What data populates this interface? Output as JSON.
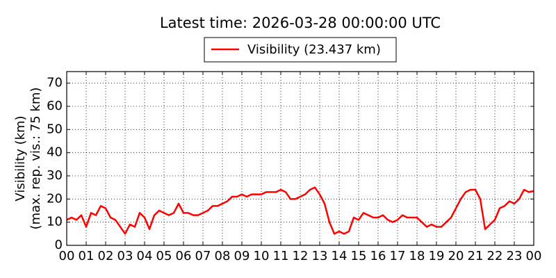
{
  "chart_data": {
    "type": "line",
    "title": "Latest time: 2026-03-28 00:00:00 UTC",
    "y_label": [
      "Visibility (km)",
      "(max. rep. vis.: 75 km)"
    ],
    "x": [
      0,
      0.25,
      0.5,
      0.75,
      1,
      1.25,
      1.5,
      1.75,
      2,
      2.25,
      2.5,
      2.75,
      3,
      3.25,
      3.5,
      3.75,
      4,
      4.25,
      4.5,
      4.75,
      5,
      5.25,
      5.5,
      5.75,
      6,
      6.25,
      6.5,
      6.75,
      7,
      7.25,
      7.5,
      7.75,
      8,
      8.25,
      8.5,
      8.75,
      9,
      9.25,
      9.5,
      9.75,
      10,
      10.25,
      10.5,
      10.75,
      11,
      11.25,
      11.5,
      11.75,
      12,
      12.25,
      12.5,
      12.75,
      13,
      13.25,
      13.5,
      13.75,
      14,
      14.25,
      14.5,
      14.75,
      15,
      15.25,
      15.5,
      15.75,
      16,
      16.25,
      16.5,
      16.75,
      17,
      17.25,
      17.5,
      17.75,
      18,
      18.25,
      18.5,
      18.75,
      19,
      19.25,
      19.5,
      19.75,
      20,
      20.25,
      20.5,
      20.75,
      21,
      21.25,
      21.5,
      21.75,
      22,
      22.25,
      22.5,
      22.75,
      23,
      23.25,
      23.5,
      23.75,
      24
    ],
    "series": [
      {
        "name": "Visibility (23.437 km)",
        "color": "#ff0000",
        "values": [
          11,
          12,
          11,
          13,
          8,
          14,
          13,
          17,
          16,
          12,
          11,
          8,
          5,
          9,
          8,
          14,
          12,
          7,
          13,
          15,
          14,
          13,
          14,
          18,
          14,
          14,
          13,
          13,
          14,
          15,
          17,
          17,
          18,
          19,
          21,
          21,
          22,
          21,
          22,
          22,
          22,
          23,
          23,
          23,
          24,
          23,
          20,
          20,
          21,
          22,
          24,
          25,
          22,
          18,
          10,
          5,
          6,
          5,
          6,
          12,
          11,
          14,
          13,
          12,
          12,
          13,
          11,
          10,
          11,
          13,
          12,
          12,
          12,
          10,
          8,
          9,
          8,
          8,
          10,
          12,
          16,
          20,
          23,
          24,
          24,
          20,
          7,
          9,
          11,
          16,
          17,
          19,
          18,
          20,
          24,
          23,
          23.437
        ]
      }
    ],
    "xlim": [
      0,
      24
    ],
    "ylim": [
      0,
      75
    ],
    "xticks": [
      {
        "value": 0,
        "label": "00"
      },
      {
        "value": 1,
        "label": "01"
      },
      {
        "value": 2,
        "label": "02"
      },
      {
        "value": 3,
        "label": "03"
      },
      {
        "value": 4,
        "label": "04"
      },
      {
        "value": 5,
        "label": "05"
      },
      {
        "value": 6,
        "label": "06"
      },
      {
        "value": 7,
        "label": "07"
      },
      {
        "value": 8,
        "label": "08"
      },
      {
        "value": 9,
        "label": "09"
      },
      10,
      11,
      12,
      13,
      14,
      15,
      16,
      17,
      18,
      19,
      20,
      21,
      22,
      23,
      {
        "value": 24,
        "label": "00"
      }
    ],
    "yticks": [
      0,
      10,
      20,
      30,
      40,
      50,
      60,
      70
    ],
    "grid": true
  }
}
